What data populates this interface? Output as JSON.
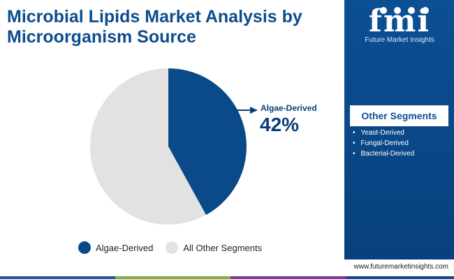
{
  "title": "Microbial Lipids Market Analysis by Microorganism Source",
  "chart_data": {
    "type": "pie",
    "slices": [
      {
        "label": "Algae-Derived",
        "value": 42,
        "color": "#0b4a88"
      },
      {
        "label": "All Other Segments",
        "value": 58,
        "color": "#e2e2e2"
      }
    ],
    "callout": {
      "label": "Algae-Derived",
      "value": "42%"
    },
    "legend": [
      {
        "label": "Algae-Derived",
        "color": "#0b4a88"
      },
      {
        "label": "All Other Segments",
        "color": "#e2e2e2"
      }
    ]
  },
  "sidebar": {
    "logo_mark": "fmi",
    "logo_subtitle": "Future Market Insights",
    "segments_heading": "Other Segments",
    "segments": [
      "Yeast-Derived",
      "Fungal-Derived",
      "Bacterial-Derived"
    ]
  },
  "footer": {
    "url": "www.futuremarketinsights.com"
  },
  "colors": {
    "brand_blue": "#0b4f94",
    "pie_primary": "#0b4a88",
    "pie_secondary": "#e2e2e2",
    "strip": [
      "#1f5aa6",
      "#7cb342",
      "#7b3fa0",
      "#0b4f94"
    ]
  }
}
